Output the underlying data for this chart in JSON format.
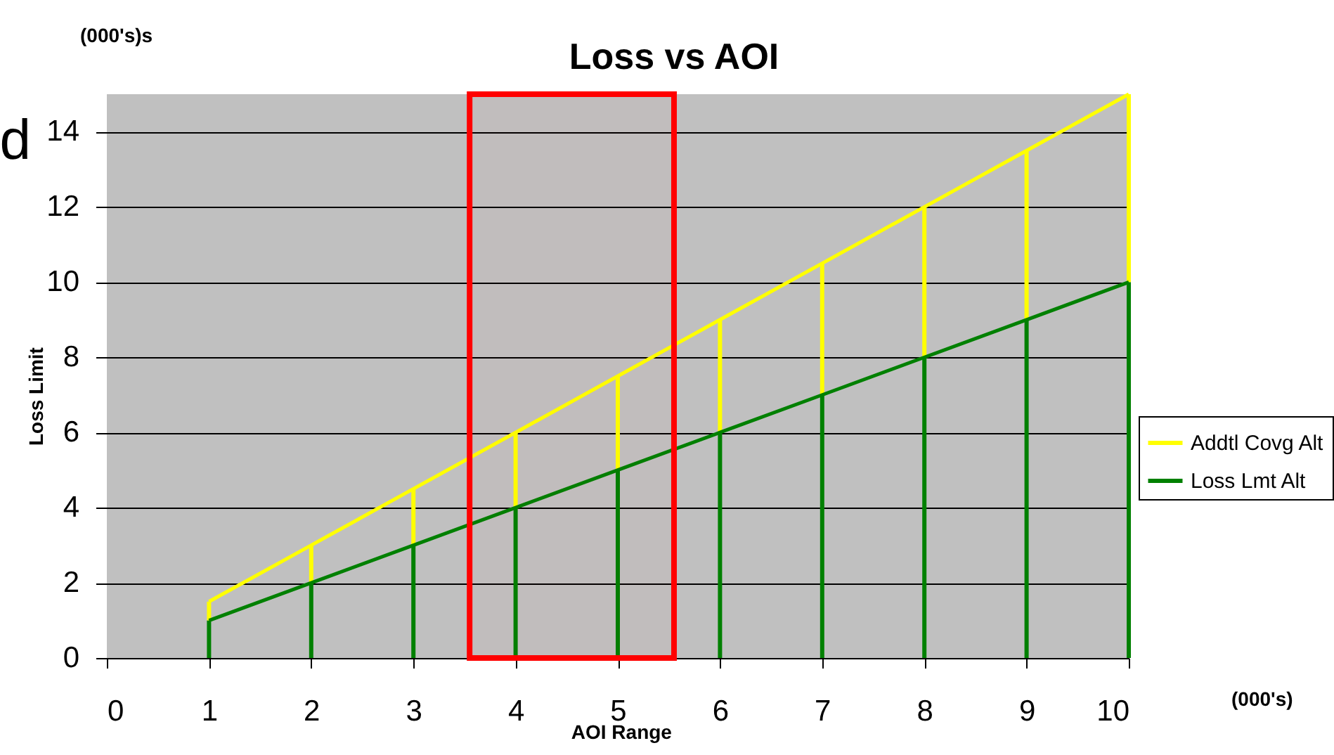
{
  "chart_data": {
    "type": "line",
    "title": "Loss  vs AOI",
    "xlabel": "AOI Range",
    "ylabel": "Loss Limit",
    "annotations": [
      "(000's)s",
      "(000's)",
      "d"
    ],
    "x": [
      1,
      2,
      3,
      4,
      5,
      6,
      7,
      8,
      9,
      10
    ],
    "stacked": true,
    "series": [
      {
        "type": "bar",
        "color": "#008000",
        "values": [
          1,
          2,
          3,
          4,
          5,
          6,
          7,
          8,
          9,
          10
        ]
      },
      {
        "type": "bar",
        "color": "#ffff00",
        "values": [
          0.5,
          1,
          1.5,
          2,
          2.5,
          3,
          3.5,
          4,
          4.5,
          5
        ]
      },
      {
        "name": "Addtl Covg Alt",
        "color": "#ffff00",
        "values": [
          1.5,
          3,
          4.5,
          6,
          7.5,
          9,
          10.5,
          12,
          13.5,
          15
        ]
      },
      {
        "name": "Loss Lmt Alt",
        "color": "#008000",
        "values": [
          1,
          2,
          3,
          4,
          5,
          6,
          7,
          8,
          9,
          10
        ]
      }
    ],
    "xlim": [
      0,
      10
    ],
    "xticks": [
      0,
      1,
      2,
      3,
      4,
      5,
      6,
      7,
      8,
      9,
      10
    ],
    "ylim": [
      0,
      15
    ],
    "yticks": [
      0,
      2,
      4,
      6,
      8,
      10,
      12,
      14
    ],
    "grid": "y",
    "legend": "right",
    "bands": [
      {
        "axis": "x",
        "from": 3.55,
        "to": 5.55,
        "color": "#ff0000"
      }
    ]
  }
}
